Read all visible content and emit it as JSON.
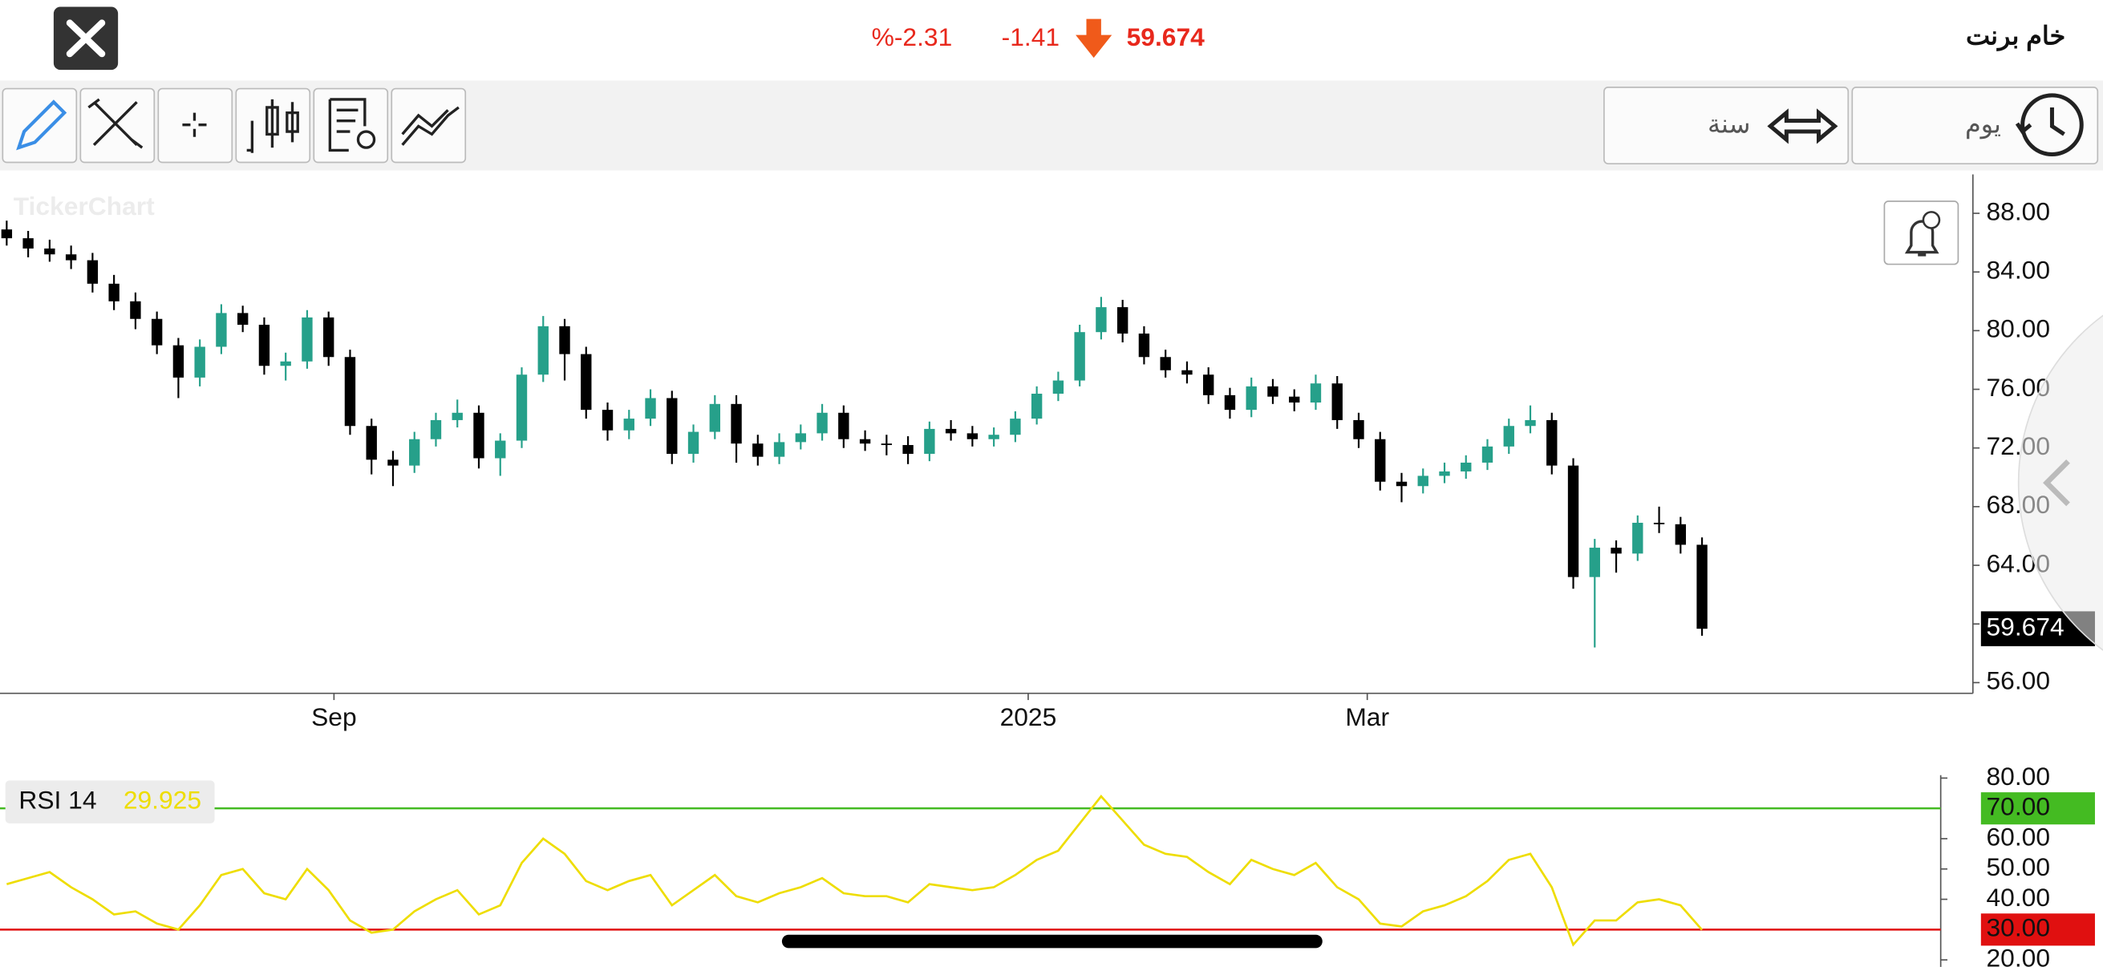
{
  "header": {
    "title": "خام برنت",
    "price": "59.674",
    "change": "-1.41",
    "change_pct": "%-2.31"
  },
  "toolbar": {
    "period": "يوم",
    "range": "سنة"
  },
  "watermark": "TickerChart",
  "chart_data": [
    {
      "type": "candlestick",
      "up_color": "#26a08a",
      "down_color": "#000000",
      "xlim": [
        -0.3125,
        91.56
      ],
      "ylim": [
        55.27,
        90.65
      ],
      "xticks": [
        {
          "value": 15.25,
          "label": "Sep"
        },
        {
          "value": 47.6,
          "label": "2025"
        },
        {
          "value": 63.4,
          "label": "Mar"
        }
      ],
      "yticks": [
        {
          "value": 56,
          "label": "56.00"
        },
        {
          "value": 60,
          "label": "60.00"
        },
        {
          "value": 64,
          "label": "64.00"
        },
        {
          "value": 68,
          "label": "68.00"
        },
        {
          "value": 72,
          "label": "72.00"
        },
        {
          "value": 76,
          "label": "76.00"
        },
        {
          "value": 80,
          "label": "80.00"
        },
        {
          "value": 84,
          "label": "84.00"
        },
        {
          "value": 88,
          "label": "88.00"
        }
      ],
      "open": [
        86.9,
        86.3,
        85.6,
        85.2,
        84.8,
        83.2,
        82.0,
        80.8,
        79.0,
        76.8,
        78.9,
        81.2,
        80.4,
        77.6,
        77.9,
        80.9,
        78.2,
        73.5,
        71.2,
        70.8,
        72.6,
        73.9,
        74.4,
        71.3,
        72.5,
        77.0,
        80.3,
        78.4,
        74.6,
        73.2,
        74.0,
        75.4,
        71.6,
        73.1,
        75.0,
        72.3,
        71.4,
        72.4,
        73.0,
        74.4,
        72.6,
        72.3,
        72.2,
        71.6,
        73.3,
        73.0,
        72.6,
        72.9,
        74.0,
        75.7,
        76.6,
        79.9,
        81.6,
        79.8,
        78.2,
        77.3,
        77.0,
        75.6,
        74.6,
        76.2,
        75.5,
        75.1,
        76.4,
        73.9,
        72.6,
        69.7,
        69.4,
        70.1,
        70.4,
        71.0,
        72.1,
        73.5,
        73.9,
        70.8,
        63.2,
        65.2,
        64.8,
        66.9,
        66.8,
        65.4
      ],
      "high": [
        87.5,
        86.8,
        86.2,
        85.8,
        85.3,
        83.8,
        82.6,
        81.3,
        79.5,
        79.4,
        81.8,
        81.7,
        80.9,
        78.5,
        81.4,
        81.3,
        78.7,
        74.0,
        71.8,
        73.1,
        74.4,
        75.3,
        74.9,
        73.0,
        77.5,
        81.0,
        80.8,
        78.9,
        75.1,
        74.6,
        76.0,
        75.9,
        73.6,
        75.6,
        75.6,
        72.9,
        73.0,
        73.6,
        75.0,
        74.9,
        73.2,
        72.9,
        72.8,
        73.8,
        73.9,
        73.5,
        73.4,
        74.5,
        76.2,
        77.2,
        80.4,
        82.3,
        82.1,
        80.3,
        78.7,
        77.9,
        77.5,
        76.1,
        76.8,
        76.7,
        76.0,
        77.0,
        76.9,
        74.4,
        73.1,
        70.3,
        70.6,
        71.0,
        71.5,
        72.6,
        74.0,
        74.9,
        74.4,
        71.3,
        65.8,
        65.7,
        67.4,
        68.0,
        67.3,
        65.9
      ],
      "low": [
        85.8,
        85.0,
        84.7,
        84.2,
        82.6,
        81.4,
        80.1,
        78.4,
        75.4,
        76.2,
        78.4,
        79.9,
        77.0,
        76.6,
        77.4,
        77.6,
        72.9,
        70.2,
        69.4,
        70.3,
        72.1,
        73.4,
        70.6,
        70.1,
        72.0,
        76.5,
        76.6,
        74.0,
        72.5,
        72.6,
        73.5,
        70.9,
        71.0,
        72.6,
        71.0,
        70.8,
        70.9,
        71.9,
        72.5,
        72.0,
        71.8,
        71.5,
        70.9,
        71.1,
        72.5,
        72.1,
        72.1,
        72.4,
        73.6,
        75.2,
        76.2,
        79.4,
        79.2,
        77.7,
        76.8,
        76.4,
        75.0,
        74.0,
        74.1,
        75.0,
        74.5,
        74.6,
        73.3,
        72.0,
        69.1,
        68.3,
        68.9,
        69.6,
        69.9,
        70.5,
        71.6,
        73.0,
        70.2,
        62.4,
        58.4,
        63.5,
        64.3,
        66.2,
        64.8,
        59.2
      ],
      "close": [
        86.3,
        85.6,
        85.2,
        84.8,
        83.2,
        82.0,
        80.8,
        79.0,
        76.8,
        78.9,
        81.2,
        80.4,
        77.6,
        77.9,
        80.9,
        78.2,
        73.5,
        71.2,
        70.8,
        72.6,
        73.9,
        74.4,
        71.3,
        72.5,
        77.0,
        80.3,
        78.4,
        74.6,
        73.2,
        74.0,
        75.4,
        71.6,
        73.1,
        75.0,
        72.3,
        71.4,
        72.4,
        73.0,
        74.4,
        72.6,
        72.3,
        72.2,
        71.6,
        73.3,
        73.0,
        72.6,
        72.9,
        74.0,
        75.7,
        76.6,
        79.9,
        81.6,
        79.8,
        78.2,
        77.3,
        77.0,
        75.6,
        74.6,
        76.2,
        75.5,
        75.1,
        76.4,
        73.9,
        72.6,
        69.7,
        69.4,
        70.1,
        70.4,
        71.0,
        72.1,
        73.5,
        73.9,
        70.8,
        63.2,
        65.2,
        64.8,
        66.9,
        66.8,
        65.4,
        59.674
      ]
    },
    {
      "type": "line",
      "xlim": [
        -0.3125,
        91.56
      ],
      "ylim": [
        17.7,
        82.3
      ],
      "yticks": [
        {
          "value": 20,
          "label": "20.00"
        },
        {
          "value": 40,
          "label": "40.00"
        },
        {
          "value": 50,
          "label": "50.00"
        },
        {
          "value": 60,
          "label": "60.00"
        },
        {
          "value": 80,
          "label": "80.00"
        }
      ],
      "levels": [
        {
          "value": 70,
          "label": "70.00",
          "color": "#44bb22"
        },
        {
          "value": 30,
          "label": "30.00",
          "color": "#e01010"
        }
      ],
      "series": [
        {
          "name": "RSI 14",
          "color": "#eedd00",
          "values": [
            45,
            47,
            49,
            44,
            40,
            35,
            36,
            32,
            30,
            38,
            48,
            50,
            42,
            40,
            50,
            43,
            33,
            29,
            30,
            36,
            40,
            43,
            35,
            38,
            52,
            60,
            55,
            46,
            43,
            46,
            48,
            38,
            43,
            48,
            41,
            39,
            42,
            44,
            47,
            42,
            41,
            41,
            39,
            45,
            44,
            43,
            44,
            48,
            53,
            56,
            65,
            74,
            66,
            58,
            55,
            54,
            49,
            45,
            53,
            50,
            48,
            52,
            44,
            40,
            32,
            31,
            36,
            38,
            41,
            46,
            53,
            55,
            44,
            25,
            33,
            33,
            39,
            40,
            38,
            29.925
          ]
        }
      ]
    }
  ]
}
